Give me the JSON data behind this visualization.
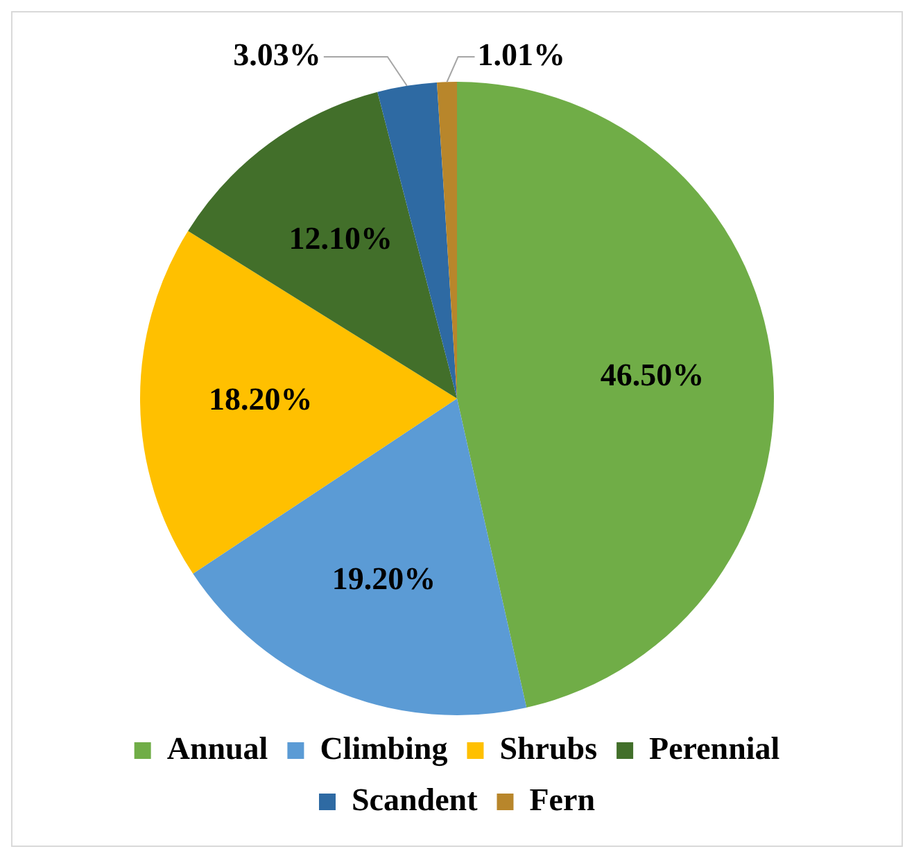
{
  "chart_data": {
    "type": "pie",
    "categories": [
      "Annual",
      "Climbing",
      "Shrubs",
      "Perennial",
      "Scandent",
      "Fern"
    ],
    "values": [
      46.5,
      19.2,
      18.2,
      12.1,
      3.03,
      1.01
    ],
    "colors": [
      "#70ad47",
      "#5b9bd5",
      "#ffc000",
      "#426f2a",
      "#2e6aa3",
      "#b8862b"
    ],
    "value_labels": [
      "46.50%",
      "19.20%",
      "18.20%",
      "12.10%",
      "3.03%",
      "1.01%"
    ],
    "legend": "bottom"
  }
}
